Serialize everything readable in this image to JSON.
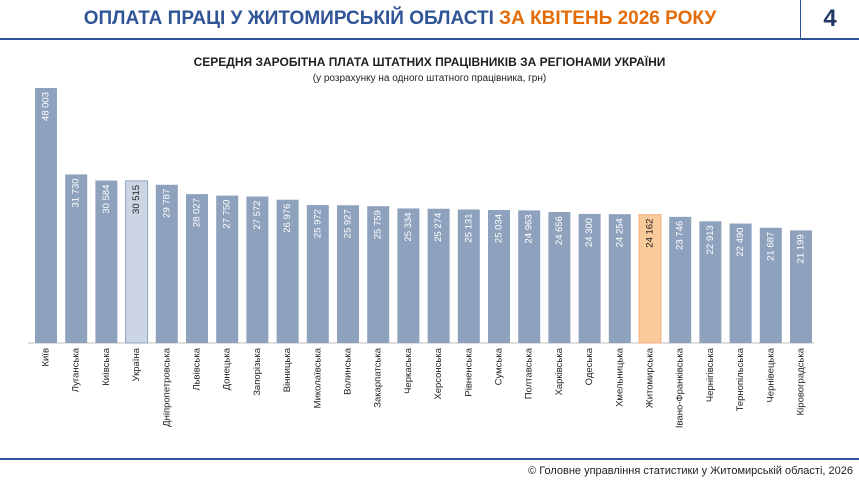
{
  "header": {
    "title_main": "ОПЛАТА ПРАЦІ У ЖИТОМИРСЬКІЙ ОБЛАСТІ ",
    "title_accent": "ЗА КВІТЕНЬ 2026 РОКУ",
    "page_number": "4"
  },
  "footer": {
    "source": "© Головне управління статистики у Житомирській області, 2026"
  },
  "colors": {
    "bar_default": "#8ea2bd",
    "bar_ukraine": "#ccd5e3",
    "bar_zhytomyr": "#f9ca9a",
    "header_blue": "#2f5597",
    "header_orange": "#e36c09"
  },
  "chart_data": {
    "type": "bar",
    "title": "СЕРЕДНЯ ЗАРОБІТНА ПЛАТА ШТАТНИХ ПРАЦІВНИКІВ ЗА РЕГІОНАМИ УКРАЇНИ",
    "subtitle": "(у розрахунку на одного штатного працівника, грн)",
    "xlabel": "",
    "ylabel": "",
    "ylim": [
      0,
      48003
    ],
    "grid": false,
    "categories": [
      "Київ",
      "Луганська",
      "Київська",
      "Україна",
      "Дніпропетровська",
      "Львівська",
      "Донецька",
      "Запорізька",
      "Вінницька",
      "Миколаївська",
      "Волинська",
      "Закарпатська",
      "Черкаська",
      "Херсонська",
      "Рівненська",
      "Сумська",
      "Полтавська",
      "Харківська",
      "Одеська",
      "Хмельницька",
      "Житомирська",
      "Івано-Франківська",
      "Чернігівська",
      "Тернопільська",
      "Чернівецька",
      "Кіровоградська"
    ],
    "values": [
      48003,
      31730,
      30584,
      30515,
      29787,
      28027,
      27750,
      27572,
      26976,
      25972,
      25927,
      25759,
      25334,
      25274,
      25131,
      25034,
      24963,
      24656,
      24300,
      24254,
      24162,
      23746,
      22913,
      22490,
      21687,
      21199
    ],
    "value_labels": [
      "48 003",
      "31 730",
      "30 584",
      "30 515",
      "29 787",
      "28 027",
      "27 750",
      "27 572",
      "26 976",
      "25 972",
      "25 927",
      "25 759",
      "25 334",
      "25 274",
      "25 131",
      "25 034",
      "24 963",
      "24 656",
      "24 300",
      "24 254",
      "24 162",
      "23 746",
      "22 913",
      "22 490",
      "21 687",
      "21 199"
    ],
    "highlight": {
      "Україна": "bar_ukraine",
      "Житомирська": "bar_zhytomyr"
    }
  }
}
